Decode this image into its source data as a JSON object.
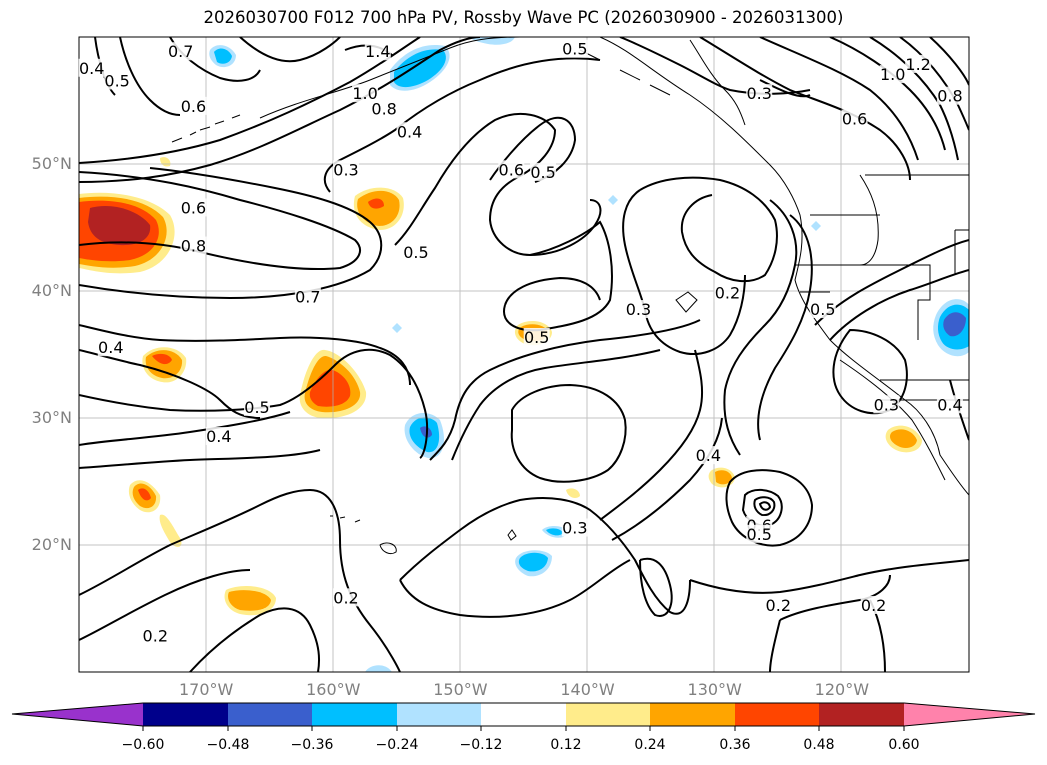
{
  "title": "2026030700 F012 700 hPa PV, Rossby Wave PC (2026030900 - 2026031300)",
  "map": {
    "lon_range": [
      -180,
      -110
    ],
    "lat_range": [
      10,
      60
    ],
    "lon_labels": [
      "170°W",
      "160°W",
      "150°W",
      "140°W",
      "130°W",
      "120°W"
    ],
    "lon_values": [
      -170,
      -160,
      -150,
      -140,
      -130,
      -120
    ],
    "lat_labels": [
      "50°N",
      "40°N",
      "30°N",
      "20°N"
    ],
    "lat_values": [
      50,
      40,
      30,
      20
    ],
    "grid": true,
    "label_color": "#808080"
  },
  "contour_labels": [
    {
      "text": "0.4",
      "lon": -179,
      "lat": 57.5
    },
    {
      "text": "0.5",
      "lon": -177,
      "lat": 56.5
    },
    {
      "text": "0.7",
      "lon": -172,
      "lat": 58.8
    },
    {
      "text": "0.6",
      "lon": -171,
      "lat": 54.5
    },
    {
      "text": "1.4",
      "lon": -156.5,
      "lat": 58.8
    },
    {
      "text": "1.0",
      "lon": -157.5,
      "lat": 55.5
    },
    {
      "text": "0.8",
      "lon": -156,
      "lat": 54.3
    },
    {
      "text": "0.4",
      "lon": -154,
      "lat": 52.5
    },
    {
      "text": "0.5",
      "lon": -141,
      "lat": 59
    },
    {
      "text": "0.3",
      "lon": -126.5,
      "lat": 55.5
    },
    {
      "text": "0.6",
      "lon": -146,
      "lat": 49.5
    },
    {
      "text": "0.5",
      "lon": -143.5,
      "lat": 49.3
    },
    {
      "text": "0.3",
      "lon": -159,
      "lat": 49.5
    },
    {
      "text": "0.6",
      "lon": -171,
      "lat": 46.5
    },
    {
      "text": "0.8",
      "lon": -171,
      "lat": 43.5
    },
    {
      "text": "0.5",
      "lon": -153.5,
      "lat": 43
    },
    {
      "text": "0.7",
      "lon": -162,
      "lat": 39.5
    },
    {
      "text": "0.2",
      "lon": -129,
      "lat": 39.8
    },
    {
      "text": "0.3",
      "lon": -136,
      "lat": 38.5
    },
    {
      "text": "0.5",
      "lon": -121.5,
      "lat": 38.5
    },
    {
      "text": "0.5",
      "lon": -144,
      "lat": 36.3
    },
    {
      "text": "0.4",
      "lon": -177.5,
      "lat": 35.5
    },
    {
      "text": "0.5",
      "lon": -166,
      "lat": 30.8
    },
    {
      "text": "0.4",
      "lon": -169,
      "lat": 28.5
    },
    {
      "text": "0.3",
      "lon": -116.5,
      "lat": 31
    },
    {
      "text": "0.4",
      "lon": -111.5,
      "lat": 31
    },
    {
      "text": "0.4",
      "lon": -130.5,
      "lat": 27
    },
    {
      "text": "0.6",
      "lon": -126.5,
      "lat": 21.5
    },
    {
      "text": "0.5",
      "lon": -126.5,
      "lat": 20.8
    },
    {
      "text": "0.3",
      "lon": -141,
      "lat": 21.3
    },
    {
      "text": "0.2",
      "lon": -159,
      "lat": 15.8
    },
    {
      "text": "0.2",
      "lon": -174,
      "lat": 12.8
    },
    {
      "text": "0.2",
      "lon": -125,
      "lat": 15.2
    },
    {
      "text": "0.2",
      "lon": -117.5,
      "lat": 15.2
    },
    {
      "text": "0.6",
      "lon": -119,
      "lat": 53.5
    },
    {
      "text": "0.8",
      "lon": -111.5,
      "lat": 55.3
    },
    {
      "text": "1.2",
      "lon": -114,
      "lat": 57.8
    },
    {
      "text": "1.0",
      "lon": -116,
      "lat": 57
    }
  ],
  "colorbar": {
    "ticks": [
      "−0.60",
      "−0.48",
      "−0.36",
      "−0.24",
      "−0.12",
      "0.12",
      "0.24",
      "0.36",
      "0.48",
      "0.60"
    ],
    "colors": [
      "#9932cc",
      "#00008b",
      "#3a5fcd",
      "#00bfff",
      "#b0e2ff",
      "#ffffff",
      "#ffec8b",
      "#ffa500",
      "#ff4500",
      "#b22222",
      "#ff82ab"
    ]
  }
}
